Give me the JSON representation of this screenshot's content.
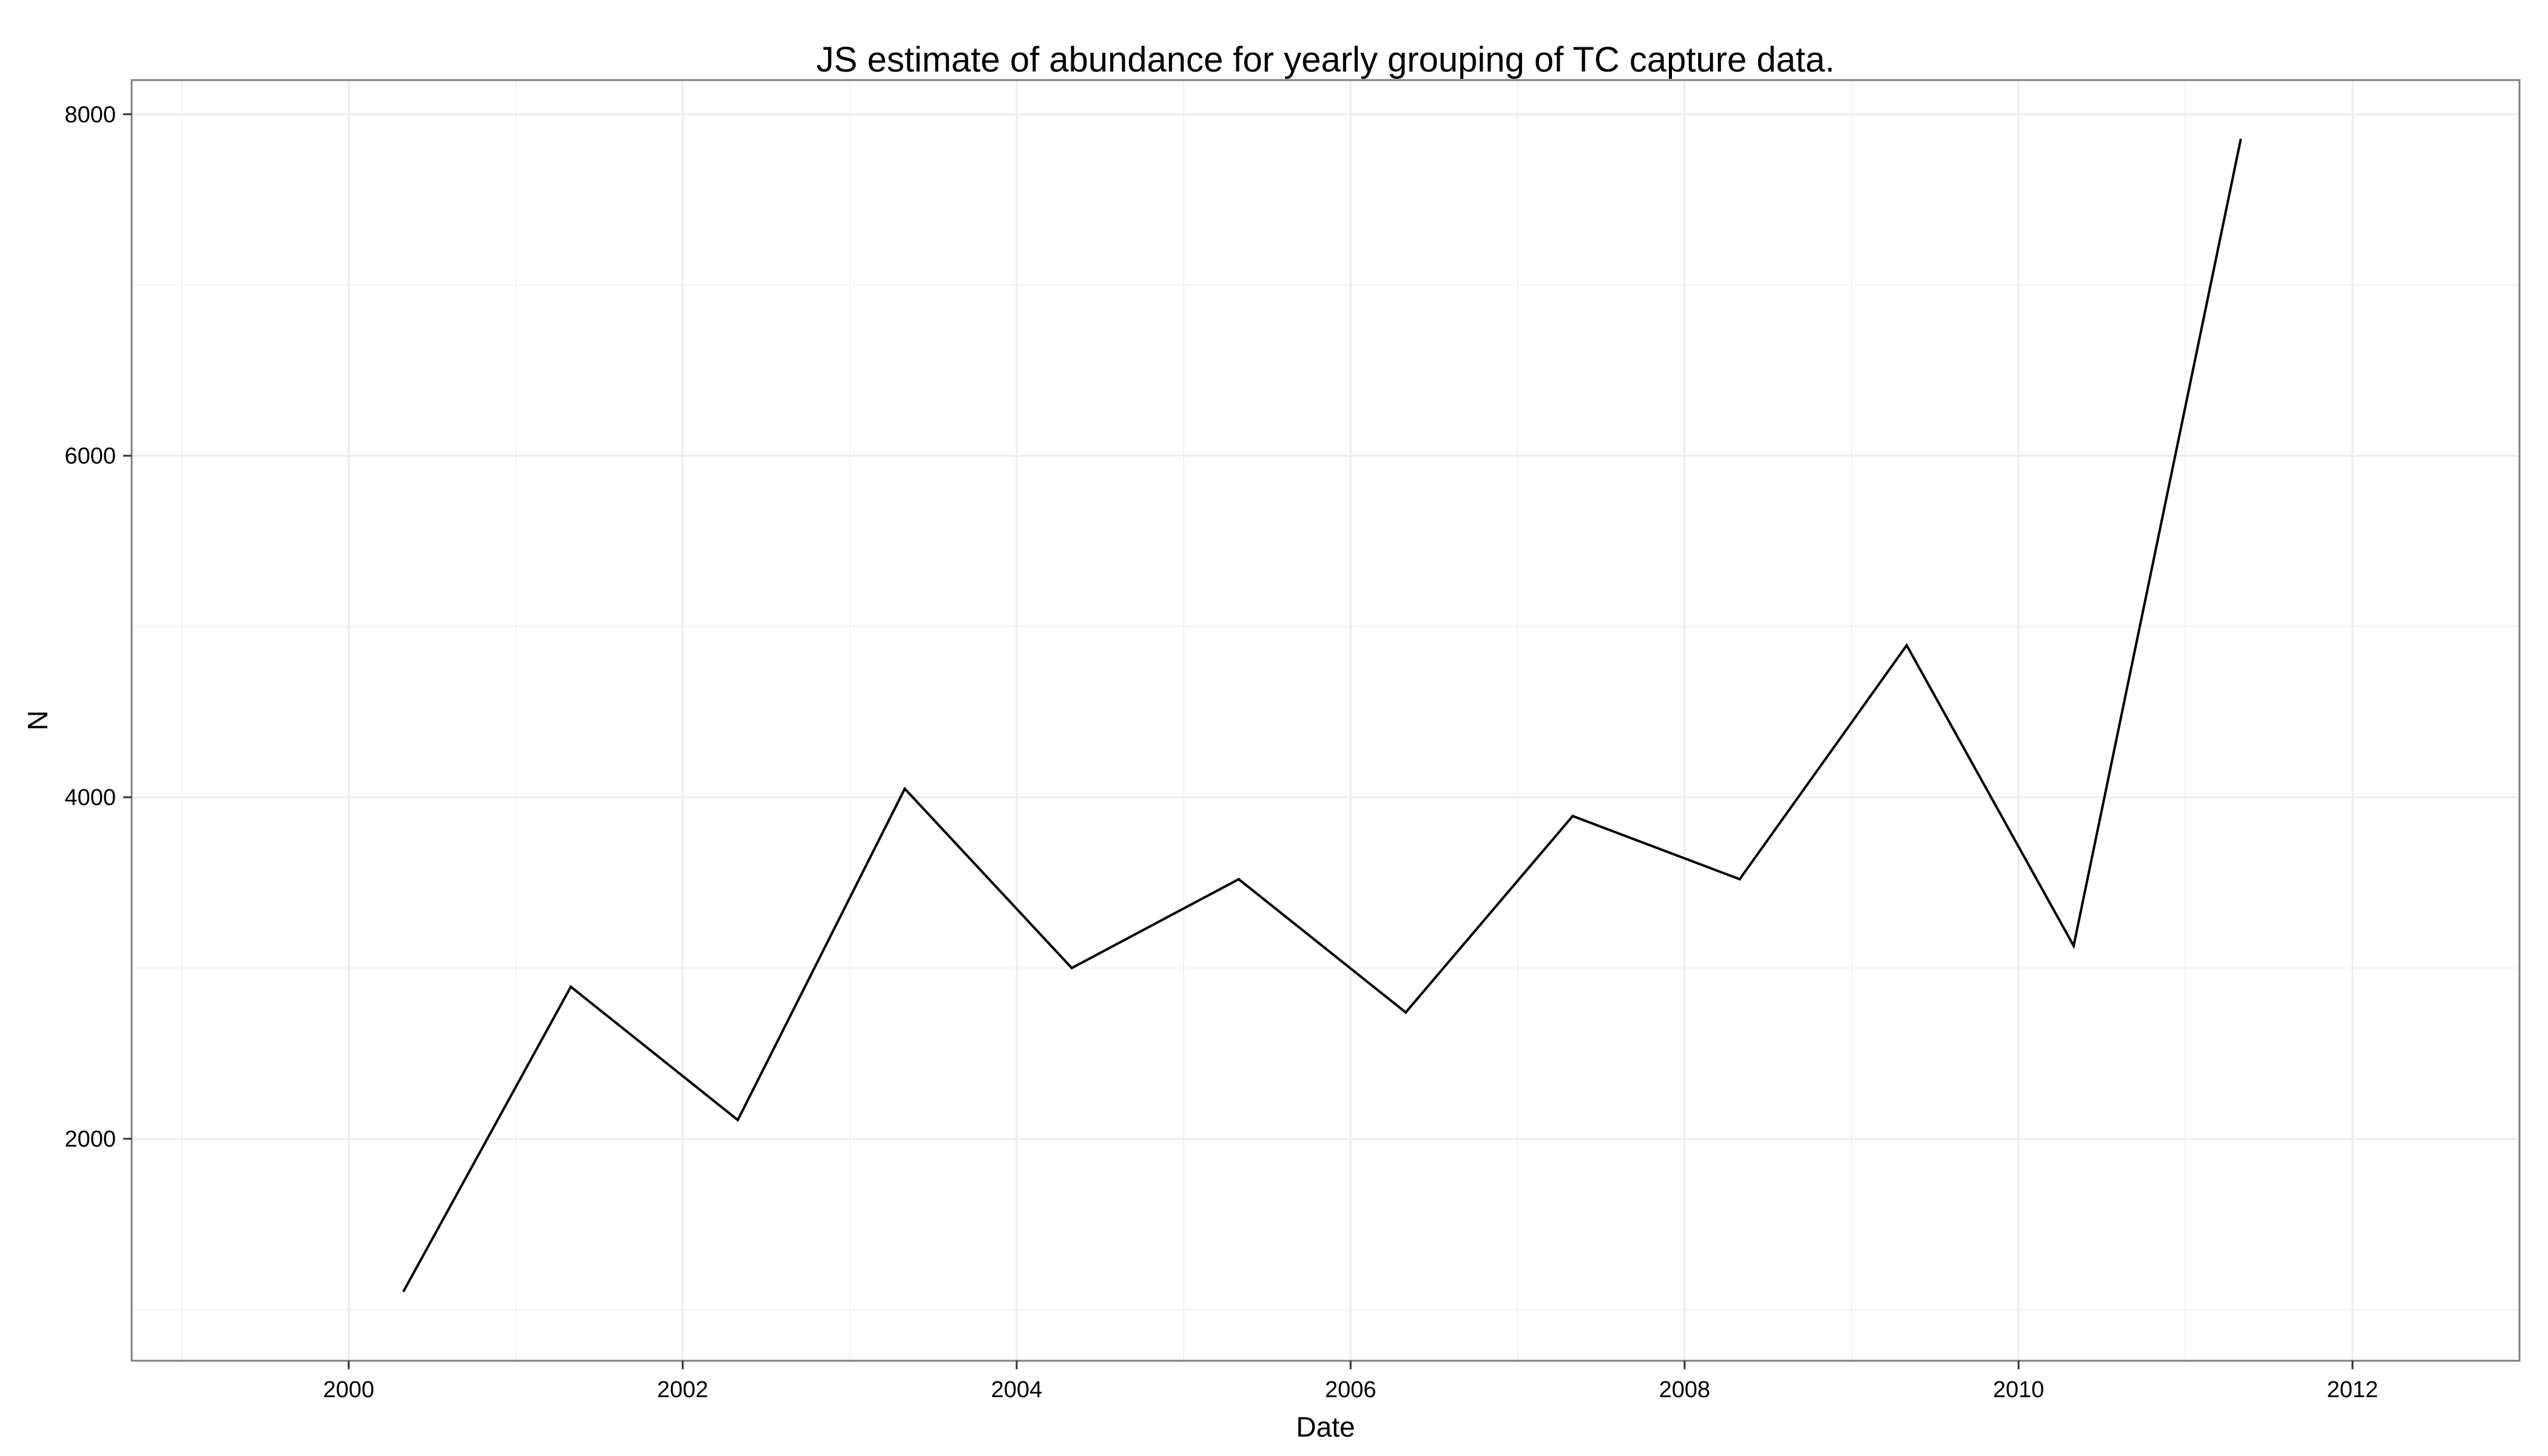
{
  "chart_data": {
    "type": "line",
    "title": "JS estimate of abundance for yearly grouping of TC capture data.",
    "xlabel": "Date",
    "ylabel": "N",
    "x_ticks": [
      2000,
      2002,
      2004,
      2006,
      2008,
      2010,
      2012
    ],
    "y_ticks": [
      2000,
      4000,
      6000,
      8000
    ],
    "xlim": [
      1998.7,
      2013.0
    ],
    "ylim": [
      700,
      8200
    ],
    "grid": true,
    "series": [
      {
        "x": [
          2000.33,
          2001.33,
          2002.33,
          2003.33,
          2004.33,
          2005.33,
          2006.33,
          2007.33,
          2008.33,
          2009.33,
          2010.33,
          2011.33
        ],
        "y": [
          1110,
          2890,
          2110,
          4050,
          3000,
          3520,
          2740,
          3890,
          3520,
          4890,
          3130,
          7850
        ]
      }
    ],
    "colors": {
      "line": "#000000",
      "panel_border": "#7f7f7f",
      "grid": "#f2f2f2"
    }
  }
}
